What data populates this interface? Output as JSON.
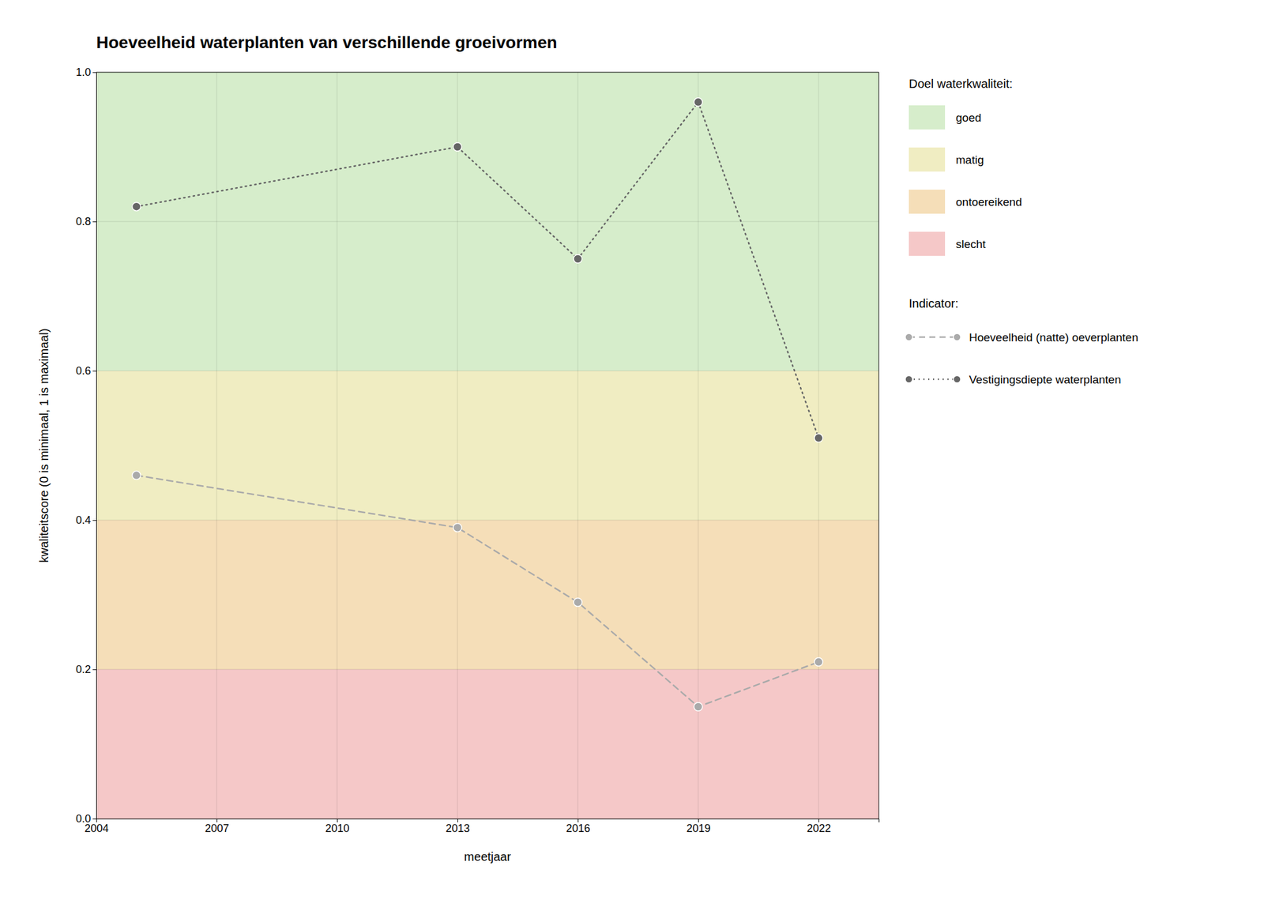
{
  "chart_data": {
    "type": "line",
    "title": "Hoeveelheid waterplanten van verschillende groeivormen",
    "xlabel": "meetjaar",
    "ylabel": "kwaliteitscore (0 is minimaal, 1 is maximaal)",
    "x": [
      2005,
      2013,
      2016,
      2019,
      2022
    ],
    "series": [
      {
        "name": "Vestigingsdiepte waterplanten",
        "color": "#666666",
        "line_style": "dotted",
        "marker": "circle",
        "values": [
          0.82,
          0.9,
          0.75,
          0.96,
          0.51
        ]
      },
      {
        "name": "Hoeveelheid (natte) oeverplanten",
        "color": "#aaaaaa",
        "line_style": "dashed",
        "marker": "circle",
        "values": [
          0.46,
          0.39,
          0.29,
          0.15,
          0.21
        ]
      }
    ],
    "series_title": "Indicator:",
    "bands": {
      "title": "Doel waterkwaliteit:",
      "items": [
        {
          "name": "goed",
          "color": "#d6edcb",
          "from": 0.6,
          "to": 1.0
        },
        {
          "name": "matig",
          "color": "#f0edc2",
          "from": 0.4,
          "to": 0.6
        },
        {
          "name": "ontoereikend",
          "color": "#f5deb8",
          "from": 0.2,
          "to": 0.4
        },
        {
          "name": "slecht",
          "color": "#f5c8c8",
          "from": 0.0,
          "to": 0.2
        }
      ]
    },
    "xlim": [
      2004,
      2023.5
    ],
    "ylim": [
      0.0,
      1.0
    ],
    "xticks": [
      2004,
      2007,
      2010,
      2013,
      2016,
      2019,
      2022
    ],
    "yticks": [
      {
        "value": 0.0,
        "label": "0.0"
      },
      {
        "value": 0.2,
        "label": "0.2"
      },
      {
        "value": 0.4,
        "label": "0.4"
      },
      {
        "value": 0.6,
        "label": "0.6"
      },
      {
        "value": 0.8,
        "label": "0.8"
      },
      {
        "value": 1.0,
        "label": "1.0"
      }
    ],
    "grid": true
  }
}
